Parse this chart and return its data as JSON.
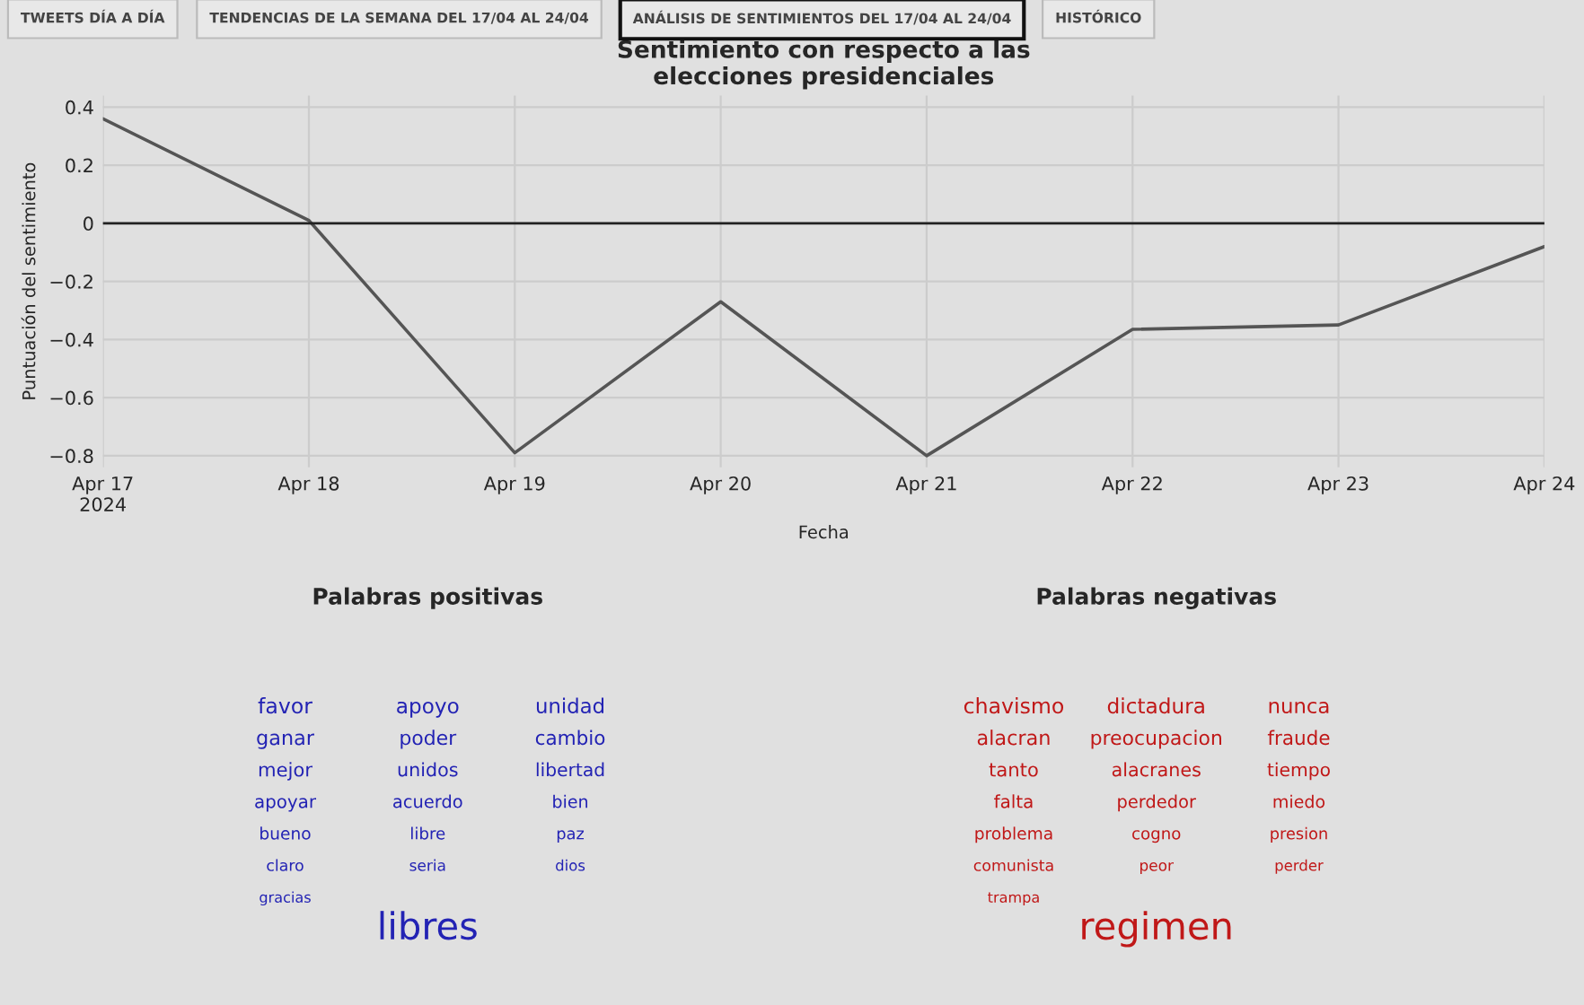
{
  "chart_data": [
    {
      "type": "line",
      "title": "Sentimiento con respecto a las\nelecciones presidenciales",
      "xlabel": "Fecha",
      "ylabel": "Puntuación del sentimiento",
      "annotations": [
        "TWEETS DÍA A DÍA",
        "TENDENCIAS DE LA SEMANA DEL 17/04 AL 24/04",
        "ANÁLISIS DE SENTIMIENTOS DEL 17/04 AL 24/04",
        "HISTÓRICO"
      ],
      "x": [
        "2024-04-17",
        "2024-04-18",
        "2024-04-19",
        "2024-04-20",
        "2024-04-21",
        "2024-04-22",
        "2024-04-23",
        "2024-04-24"
      ],
      "series": [
        {
          "color": "#555555",
          "values": [
            0.36,
            0.01,
            -0.79,
            -0.27,
            -0.8,
            -0.365,
            -0.35,
            -0.08
          ]
        }
      ],
      "xlim": [
        "2024-04-17",
        "2024-04-24"
      ],
      "xticks": [
        {
          "value": "2024-04-17",
          "label": "Apr 17\n2024"
        },
        {
          "value": "2024-04-18",
          "label": "Apr 18"
        },
        {
          "value": "2024-04-19",
          "label": "Apr 19"
        },
        {
          "value": "2024-04-20",
          "label": "Apr 20"
        },
        {
          "value": "2024-04-21",
          "label": "Apr 21"
        },
        {
          "value": "2024-04-22",
          "label": "Apr 22"
        },
        {
          "value": "2024-04-23",
          "label": "Apr 23"
        },
        {
          "value": "2024-04-24",
          "label": "Apr 24"
        }
      ],
      "ylim": [
        -0.84,
        0.44
      ],
      "yticks": [
        -0.8,
        -0.6,
        -0.4,
        -0.2,
        0,
        0.2,
        0.4
      ],
      "ref_lines": [
        {
          "axis": "y",
          "value": 0,
          "color": "#222222"
        }
      ],
      "grid": true,
      "marker": "none",
      "line_style": "solid",
      "legend": false
    },
    {
      "type": "other",
      "title": "Palabras positivas",
      "color": "#2323b4",
      "annotations": [
        "libres",
        "favor",
        "apoyo",
        "unidad",
        "ganar",
        "poder",
        "cambio",
        "mejor",
        "unidos",
        "libertad",
        "apoyar",
        "acuerdo",
        "bien",
        "bueno",
        "libre",
        "paz",
        "claro",
        "seria",
        "dios",
        "gracias"
      ]
    },
    {
      "type": "other",
      "title": "Palabras negativas",
      "color": "#c01818",
      "annotations": [
        "regimen",
        "chavismo",
        "dictadura",
        "nunca",
        "alacran",
        "preocupacion",
        "fraude",
        "tanto",
        "alacranes",
        "tiempo",
        "falta",
        "perdedor",
        "miedo",
        "problema",
        "cogno",
        "presion",
        "comunista",
        "peor",
        "perder",
        "trampa"
      ]
    }
  ]
}
